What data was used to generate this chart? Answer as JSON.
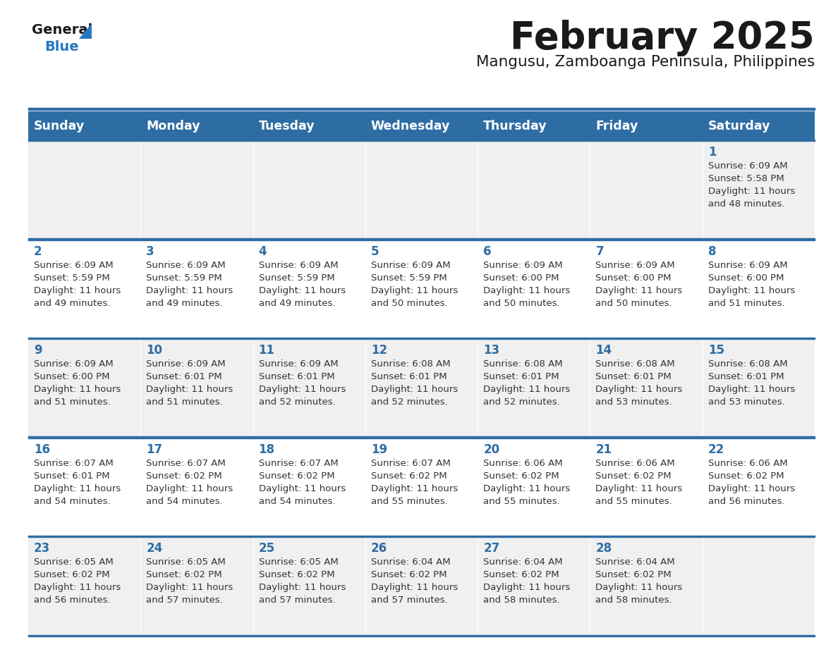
{
  "title": "February 2025",
  "subtitle": "Mangusu, Zamboanga Peninsula, Philippines",
  "days_of_week": [
    "Sunday",
    "Monday",
    "Tuesday",
    "Wednesday",
    "Thursday",
    "Friday",
    "Saturday"
  ],
  "header_bg_color": "#2E6DA4",
  "header_text_color": "#FFFFFF",
  "odd_row_color": "#F0F0F0",
  "even_row_color": "#FFFFFF",
  "line_color": "#2E6DA4",
  "title_color": "#1a1a1a",
  "subtitle_color": "#1a1a1a",
  "day_num_color": "#2E6DA4",
  "cell_text_color": "#333333",
  "logo_general_color": "#1a1a1a",
  "logo_blue_color": "#2778C2",
  "calendar_data": [
    [
      null,
      null,
      null,
      null,
      null,
      null,
      {
        "day": 1,
        "sunrise": "6:09 AM",
        "sunset": "5:58 PM",
        "daylight": "11 hours",
        "daylight2": "and 48 minutes."
      }
    ],
    [
      {
        "day": 2,
        "sunrise": "6:09 AM",
        "sunset": "5:59 PM",
        "daylight": "11 hours",
        "daylight2": "and 49 minutes."
      },
      {
        "day": 3,
        "sunrise": "6:09 AM",
        "sunset": "5:59 PM",
        "daylight": "11 hours",
        "daylight2": "and 49 minutes."
      },
      {
        "day": 4,
        "sunrise": "6:09 AM",
        "sunset": "5:59 PM",
        "daylight": "11 hours",
        "daylight2": "and 49 minutes."
      },
      {
        "day": 5,
        "sunrise": "6:09 AM",
        "sunset": "5:59 PM",
        "daylight": "11 hours",
        "daylight2": "and 50 minutes."
      },
      {
        "day": 6,
        "sunrise": "6:09 AM",
        "sunset": "6:00 PM",
        "daylight": "11 hours",
        "daylight2": "and 50 minutes."
      },
      {
        "day": 7,
        "sunrise": "6:09 AM",
        "sunset": "6:00 PM",
        "daylight": "11 hours",
        "daylight2": "and 50 minutes."
      },
      {
        "day": 8,
        "sunrise": "6:09 AM",
        "sunset": "6:00 PM",
        "daylight": "11 hours",
        "daylight2": "and 51 minutes."
      }
    ],
    [
      {
        "day": 9,
        "sunrise": "6:09 AM",
        "sunset": "6:00 PM",
        "daylight": "11 hours",
        "daylight2": "and 51 minutes."
      },
      {
        "day": 10,
        "sunrise": "6:09 AM",
        "sunset": "6:01 PM",
        "daylight": "11 hours",
        "daylight2": "and 51 minutes."
      },
      {
        "day": 11,
        "sunrise": "6:09 AM",
        "sunset": "6:01 PM",
        "daylight": "11 hours",
        "daylight2": "and 52 minutes."
      },
      {
        "day": 12,
        "sunrise": "6:08 AM",
        "sunset": "6:01 PM",
        "daylight": "11 hours",
        "daylight2": "and 52 minutes."
      },
      {
        "day": 13,
        "sunrise": "6:08 AM",
        "sunset": "6:01 PM",
        "daylight": "11 hours",
        "daylight2": "and 52 minutes."
      },
      {
        "day": 14,
        "sunrise": "6:08 AM",
        "sunset": "6:01 PM",
        "daylight": "11 hours",
        "daylight2": "and 53 minutes."
      },
      {
        "day": 15,
        "sunrise": "6:08 AM",
        "sunset": "6:01 PM",
        "daylight": "11 hours",
        "daylight2": "and 53 minutes."
      }
    ],
    [
      {
        "day": 16,
        "sunrise": "6:07 AM",
        "sunset": "6:01 PM",
        "daylight": "11 hours",
        "daylight2": "and 54 minutes."
      },
      {
        "day": 17,
        "sunrise": "6:07 AM",
        "sunset": "6:02 PM",
        "daylight": "11 hours",
        "daylight2": "and 54 minutes."
      },
      {
        "day": 18,
        "sunrise": "6:07 AM",
        "sunset": "6:02 PM",
        "daylight": "11 hours",
        "daylight2": "and 54 minutes."
      },
      {
        "day": 19,
        "sunrise": "6:07 AM",
        "sunset": "6:02 PM",
        "daylight": "11 hours",
        "daylight2": "and 55 minutes."
      },
      {
        "day": 20,
        "sunrise": "6:06 AM",
        "sunset": "6:02 PM",
        "daylight": "11 hours",
        "daylight2": "and 55 minutes."
      },
      {
        "day": 21,
        "sunrise": "6:06 AM",
        "sunset": "6:02 PM",
        "daylight": "11 hours",
        "daylight2": "and 55 minutes."
      },
      {
        "day": 22,
        "sunrise": "6:06 AM",
        "sunset": "6:02 PM",
        "daylight": "11 hours",
        "daylight2": "and 56 minutes."
      }
    ],
    [
      {
        "day": 23,
        "sunrise": "6:05 AM",
        "sunset": "6:02 PM",
        "daylight": "11 hours",
        "daylight2": "and 56 minutes."
      },
      {
        "day": 24,
        "sunrise": "6:05 AM",
        "sunset": "6:02 PM",
        "daylight": "11 hours",
        "daylight2": "and 57 minutes."
      },
      {
        "day": 25,
        "sunrise": "6:05 AM",
        "sunset": "6:02 PM",
        "daylight": "11 hours",
        "daylight2": "and 57 minutes."
      },
      {
        "day": 26,
        "sunrise": "6:04 AM",
        "sunset": "6:02 PM",
        "daylight": "11 hours",
        "daylight2": "and 57 minutes."
      },
      {
        "day": 27,
        "sunrise": "6:04 AM",
        "sunset": "6:02 PM",
        "daylight": "11 hours",
        "daylight2": "and 58 minutes."
      },
      {
        "day": 28,
        "sunrise": "6:04 AM",
        "sunset": "6:02 PM",
        "daylight": "11 hours",
        "daylight2": "and 58 minutes."
      },
      null
    ]
  ]
}
